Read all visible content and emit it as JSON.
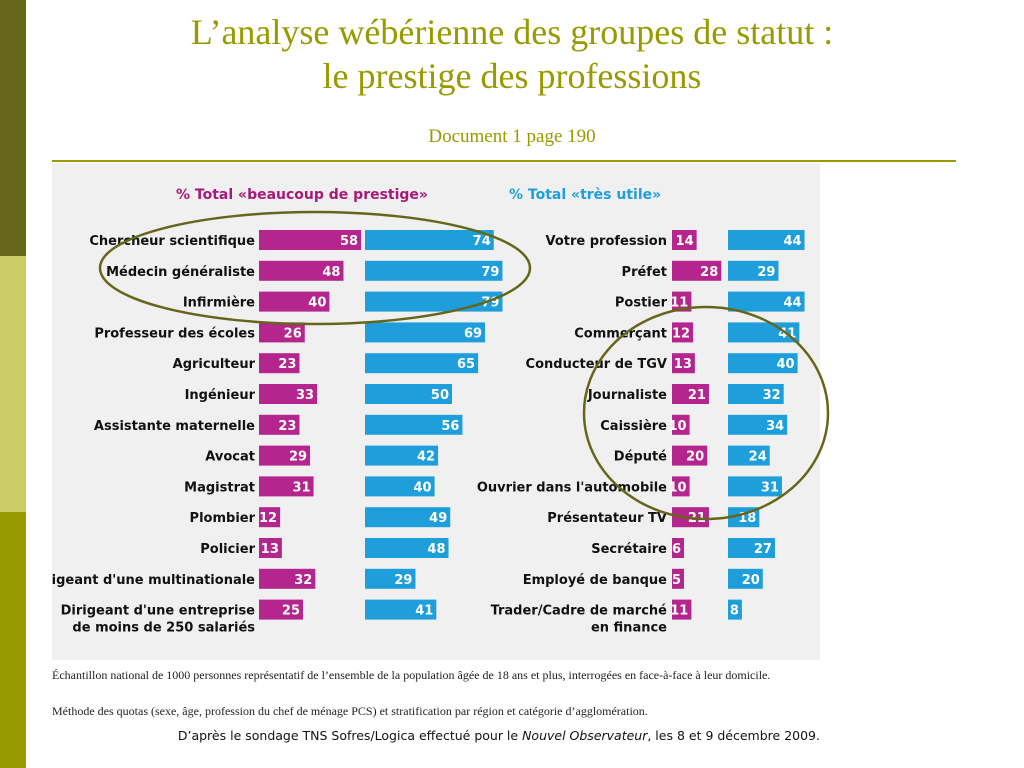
{
  "slide": {
    "title_line1": "L’analyse wébérienne des groupes de statut :",
    "title_line2": "le prestige des professions",
    "subtitle": "Document 1 page 190"
  },
  "colors": {
    "prestige": "#b5258e",
    "utile": "#1e9fdc",
    "header_prestige": "#a8187a",
    "header_utile": "#1e9fdc",
    "circle": "#66661a",
    "panel": "#f0f0f0"
  },
  "chart_data": [
    {
      "type": "bar",
      "legend": [
        "% Total «beaucoup de prestige»",
        "% Total «très utile»"
      ],
      "categories": [
        [
          "Chercheur scientifique"
        ],
        [
          "Médecin généraliste"
        ],
        [
          "Infirmière"
        ],
        [
          "Professeur des écoles"
        ],
        [
          "Agriculteur"
        ],
        [
          "Ingénieur"
        ],
        [
          "Assistante maternelle"
        ],
        [
          "Avocat"
        ],
        [
          "Magistrat"
        ],
        [
          "Plombier"
        ],
        [
          "Policier"
        ],
        [
          "Dirigeant d'une multinationale"
        ],
        [
          "Dirigeant d'une entreprise",
          "de moins de 250 salariés"
        ]
      ],
      "series": [
        {
          "name": "% Total «beaucoup de prestige»",
          "values": [
            58,
            48,
            40,
            26,
            23,
            33,
            23,
            29,
            31,
            12,
            13,
            32,
            25
          ]
        },
        {
          "name": "% Total «très utile»",
          "values": [
            74,
            79,
            79,
            69,
            65,
            50,
            56,
            42,
            40,
            49,
            48,
            29,
            41
          ]
        }
      ]
    },
    {
      "type": "bar",
      "categories": [
        [
          "Votre profession"
        ],
        [
          "Préfet"
        ],
        [
          "Postier"
        ],
        [
          "Commerçant"
        ],
        [
          "Conducteur de TGV"
        ],
        [
          "Journaliste"
        ],
        [
          "Caissière"
        ],
        [
          "Député"
        ],
        [
          "Ouvrier dans l'automobile"
        ],
        [
          "Présentateur TV"
        ],
        [
          "Secrétaire"
        ],
        [
          "Employé de banque"
        ],
        [
          "Trader/Cadre de marché",
          "en finance"
        ]
      ],
      "series": [
        {
          "name": "% Total «beaucoup de prestige»",
          "values": [
            14,
            28,
            11,
            12,
            13,
            21,
            10,
            20,
            10,
            21,
            6,
            5,
            11
          ]
        },
        {
          "name": "% Total «très utile»",
          "values": [
            44,
            29,
            44,
            41,
            40,
            32,
            34,
            24,
            31,
            18,
            27,
            20,
            8
          ]
        }
      ]
    }
  ],
  "notes": {
    "line1": "Échantillon national de 1000 personnes représentatif de l’ensemble de la population âgée de 18 ans et plus, interrogées en face-à-face à leur domicile.",
    "line2": "Méthode des quotas (sexe, âge, profession du chef de ménage PCS) et stratification par région et catégorie d’agglomération.",
    "source_before": "D’après le sondage TNS Sofres/Logica effectué pour le ",
    "source_italic": "Nouvel Observateur",
    "source_after": ", les 8 et 9 décembre 2009."
  }
}
